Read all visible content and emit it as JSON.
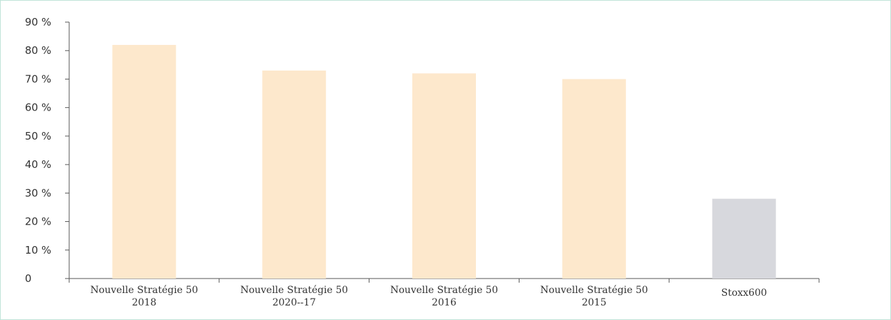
{
  "chart_data": {
    "type": "bar",
    "categories": [
      [
        "Nouvelle Stratégie 50",
        "2018"
      ],
      [
        "Nouvelle Stratégie 50",
        "2020--17"
      ],
      [
        "Nouvelle Stratégie 50",
        "2016"
      ],
      [
        "Nouvelle Stratégie 50",
        "2015"
      ],
      [
        "Stoxx600"
      ]
    ],
    "values": [
      82,
      73,
      72,
      70,
      28
    ],
    "colors": [
      "#fde8cc",
      "#fde8cc",
      "#fde8cc",
      "#fde8cc",
      "#d7d8dd"
    ],
    "yticks": [
      "0",
      "10 %",
      "20 %",
      "30 %",
      "40 %",
      "50 %",
      "60 %",
      "70 %",
      "80 %",
      "90 %"
    ],
    "ylim": [
      0,
      90
    ],
    "grid": false,
    "legend": "none",
    "axis_color": "#555555",
    "border_color": "#bfe3d8"
  }
}
